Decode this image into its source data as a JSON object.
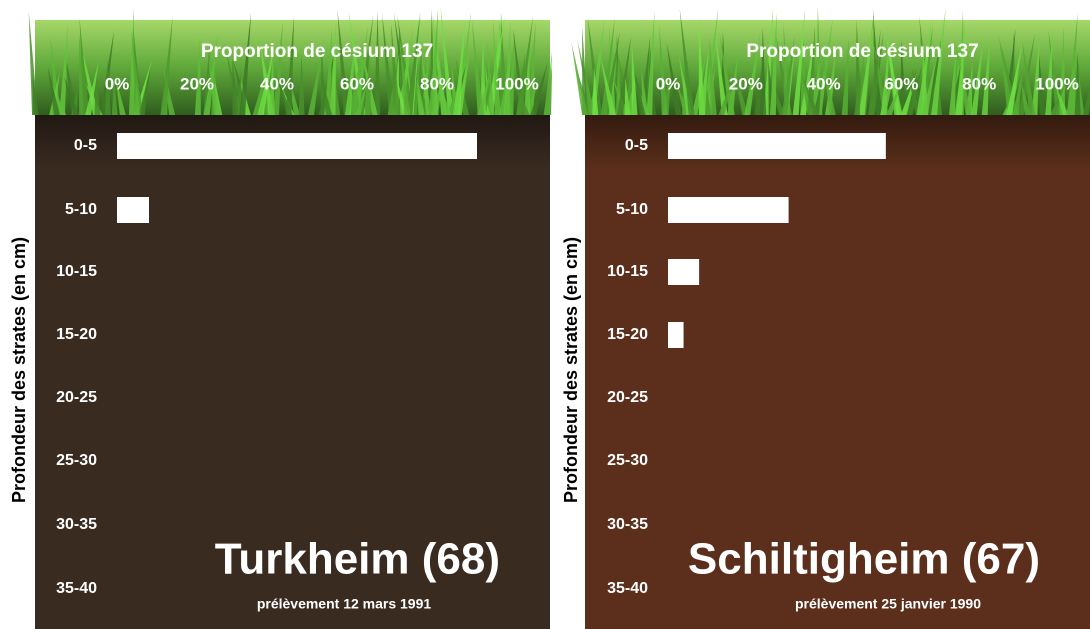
{
  "chart_data": [
    {
      "type": "bar",
      "orientation": "horizontal",
      "title": "Proportion de césium 137",
      "ylabel": "Profondeur des strates (en cm)",
      "categories": [
        "0-5",
        "5-10",
        "10-15",
        "15-20",
        "20-25",
        "25-30",
        "30-35",
        "35-40"
      ],
      "values": [
        90,
        8,
        0,
        0,
        0,
        0,
        0,
        0
      ],
      "color": "#ffffff",
      "xlim": [
        0,
        100
      ],
      "xticks": [
        {
          "value": 0,
          "label": "0%"
        },
        {
          "value": 20,
          "label": "20%"
        },
        {
          "value": 40,
          "label": "40%"
        },
        {
          "value": 60,
          "label": "60%"
        },
        {
          "value": 80,
          "label": "80%"
        },
        {
          "value": 100,
          "label": "100%"
        }
      ],
      "annotation": "Turkheim (68)",
      "subtitle": "prélèvement 12 mars 1991",
      "background": "#3a2b21"
    },
    {
      "type": "bar",
      "orientation": "horizontal",
      "title": "Proportion de césium 137",
      "ylabel": "Profondeur des strates (en cm)",
      "categories": [
        "0-5",
        "5-10",
        "10-15",
        "15-20",
        "20-25",
        "25-30",
        "30-35",
        "35-40"
      ],
      "values": [
        56,
        31,
        8,
        4,
        0,
        0,
        0,
        0
      ],
      "color": "#ffffff",
      "xlim": [
        0,
        100
      ],
      "xticks": [
        {
          "value": 0,
          "label": "0%"
        },
        {
          "value": 20,
          "label": "20%"
        },
        {
          "value": 40,
          "label": "40%"
        },
        {
          "value": 60,
          "label": "60%"
        },
        {
          "value": 80,
          "label": "80%"
        },
        {
          "value": 100,
          "label": "100%"
        }
      ],
      "annotation": "Schiltigheim (67)",
      "subtitle": "prélèvement 25 janvier 1990",
      "background": "#5b2f1b"
    }
  ]
}
